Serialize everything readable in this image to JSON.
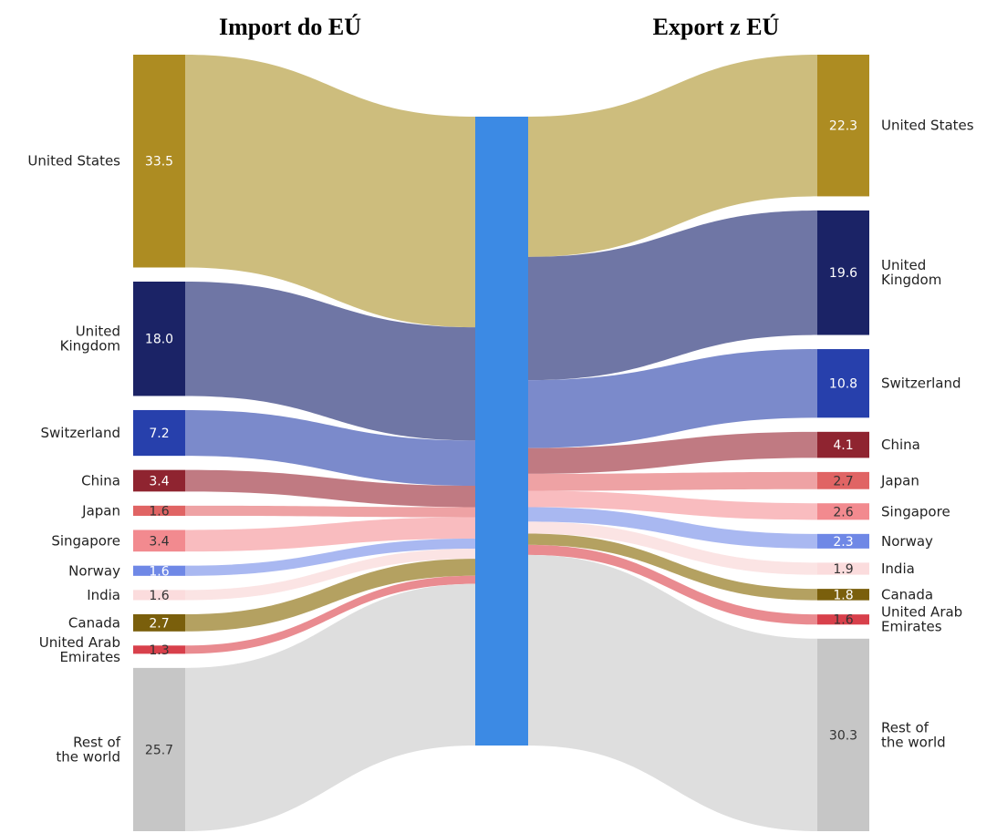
{
  "chart_data": {
    "type": "sankey",
    "left_title": "Import do EÚ",
    "right_title": "Export z EÚ",
    "import": [
      {
        "key": "us",
        "label": [
          "United States"
        ],
        "value": 33.5
      },
      {
        "key": "uk",
        "label": [
          "United",
          "Kingdom"
        ],
        "value": 18.0
      },
      {
        "key": "ch",
        "label": [
          "Switzerland"
        ],
        "value": 7.2
      },
      {
        "key": "cn",
        "label": [
          "China"
        ],
        "value": 3.4
      },
      {
        "key": "jp",
        "label": [
          "Japan"
        ],
        "value": 1.6
      },
      {
        "key": "sg",
        "label": [
          "Singapore"
        ],
        "value": 3.4
      },
      {
        "key": "no",
        "label": [
          "Norway"
        ],
        "value": 1.6
      },
      {
        "key": "in",
        "label": [
          "India"
        ],
        "value": 1.6
      },
      {
        "key": "ca",
        "label": [
          "Canada"
        ],
        "value": 2.7
      },
      {
        "key": "ae",
        "label": [
          "United Arab",
          "Emirates"
        ],
        "value": 1.3
      },
      {
        "key": "rw",
        "label": [
          "Rest of",
          "the world"
        ],
        "value": 25.7
      }
    ],
    "export": [
      {
        "key": "us",
        "label": [
          "United States"
        ],
        "value": 22.3
      },
      {
        "key": "uk",
        "label": [
          "United",
          "Kingdom"
        ],
        "value": 19.6
      },
      {
        "key": "ch",
        "label": [
          "Switzerland"
        ],
        "value": 10.8
      },
      {
        "key": "cn",
        "label": [
          "China"
        ],
        "value": 4.1
      },
      {
        "key": "jp",
        "label": [
          "Japan"
        ],
        "value": 2.7
      },
      {
        "key": "sg",
        "label": [
          "Singapore"
        ],
        "value": 2.6
      },
      {
        "key": "no",
        "label": [
          "Norway"
        ],
        "value": 2.3
      },
      {
        "key": "in",
        "label": [
          "India"
        ],
        "value": 1.9
      },
      {
        "key": "ca",
        "label": [
          "Canada"
        ],
        "value": 1.8
      },
      {
        "key": "ae",
        "label": [
          "United Arab",
          "Emirates"
        ],
        "value": 1.6
      },
      {
        "key": "rw",
        "label": [
          "Rest of",
          "the world"
        ],
        "value": 30.3
      }
    ],
    "colors": {
      "us": {
        "node": "#ad8c22",
        "flow": "#cdbd7d"
      },
      "uk": {
        "node": "#1b2366",
        "flow": "#6f76a5"
      },
      "ch": {
        "node": "#2740ac",
        "flow": "#7b8acb"
      },
      "cn": {
        "node": "#8f2430",
        "flow": "#c07a82"
      },
      "jp": {
        "node": "#e06464",
        "flow": "#eea2a4"
      },
      "sg": {
        "node": "#f28a8f",
        "flow": "#f9bcbf"
      },
      "no": {
        "node": "#6f88e6",
        "flow": "#a9b8f1"
      },
      "in": {
        "node": "#fbdcdd",
        "flow": "#fbe4e4"
      },
      "ca": {
        "node": "#7a5f0c",
        "flow": "#b4a161"
      },
      "ae": {
        "node": "#d8404b",
        "flow": "#e98b90"
      },
      "rw": {
        "node": "#c6c6c6",
        "flow": "#dedede"
      },
      "center": "#3c8ae4"
    },
    "value_text": {
      "us": "#ffffff",
      "uk": "#ffffff",
      "ch": "#ffffff",
      "cn": "#ffffff",
      "jp": "#333333",
      "sg": "#333333",
      "no": "#ffffff",
      "in": "#333333",
      "ca": "#ffffff",
      "ae": "#333333",
      "rw": "#333333"
    }
  }
}
